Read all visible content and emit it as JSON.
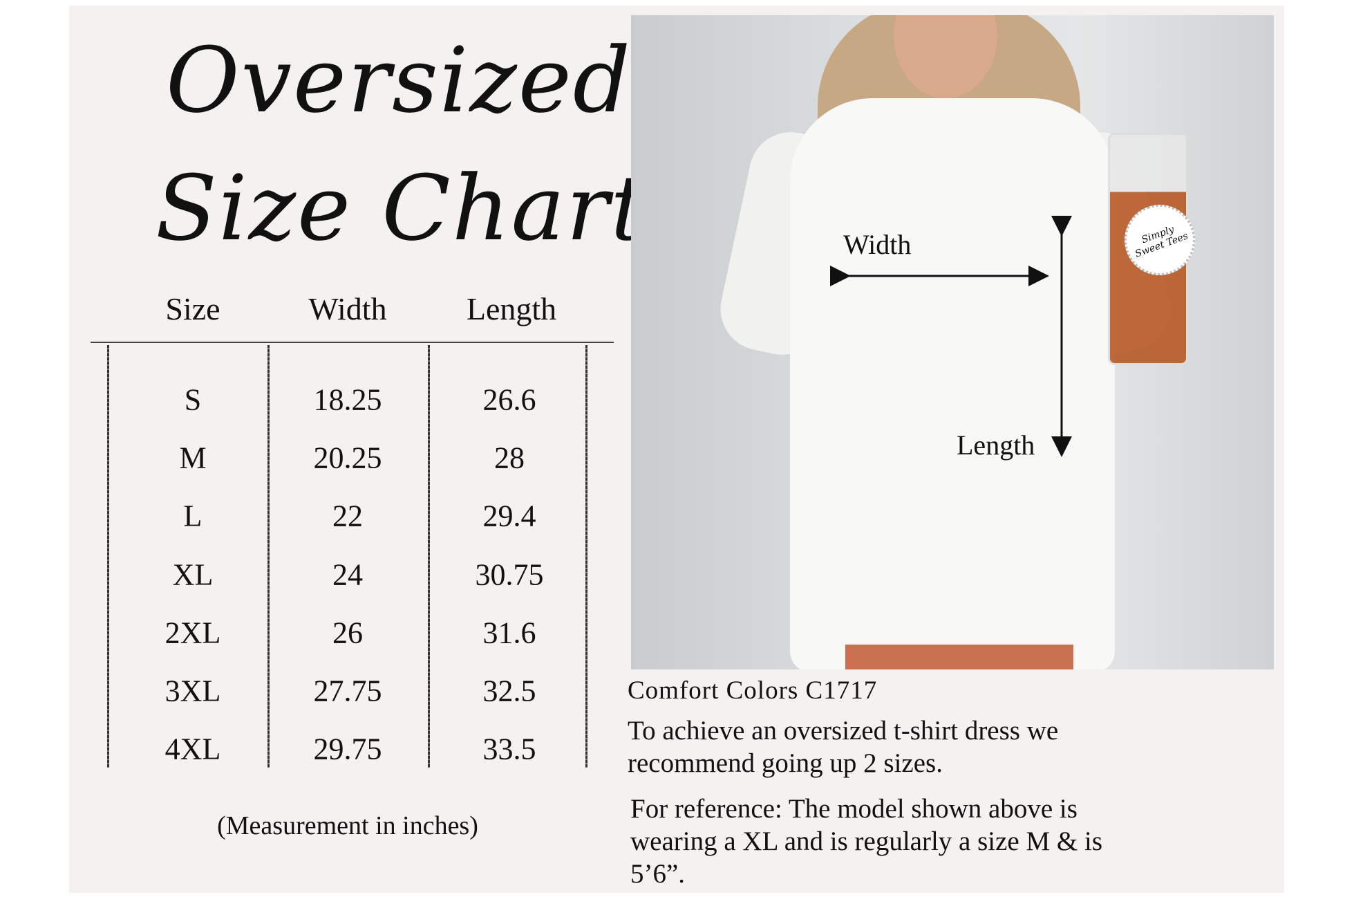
{
  "title": {
    "line1": "Oversized",
    "line2": "Size Chart"
  },
  "table": {
    "headers": [
      "Size",
      "Width",
      "Length"
    ],
    "rows": [
      [
        "S",
        "18.25",
        "26.6"
      ],
      [
        "M",
        "20.25",
        "28"
      ],
      [
        "L",
        "22",
        "29.4"
      ],
      [
        "XL",
        "24",
        "30.75"
      ],
      [
        "2XL",
        "26",
        "31.6"
      ],
      [
        "3XL",
        "27.75",
        "32.5"
      ],
      [
        "4XL",
        "29.75",
        "33.5"
      ]
    ],
    "note": "(Measurement in inches)"
  },
  "photo": {
    "width_label": "Width",
    "length_label": "Length",
    "logo_text": "Simply Sweet Tees"
  },
  "info": {
    "product": "Comfort Colors C1717",
    "recommend_lines": [
      "To achieve an oversized t-shirt dress we",
      "recommend going up 2 sizes."
    ],
    "reference_lines": [
      "For reference: The model shown above is",
      "wearing a XL and is regularly a size M & is",
      "5’6”."
    ]
  }
}
